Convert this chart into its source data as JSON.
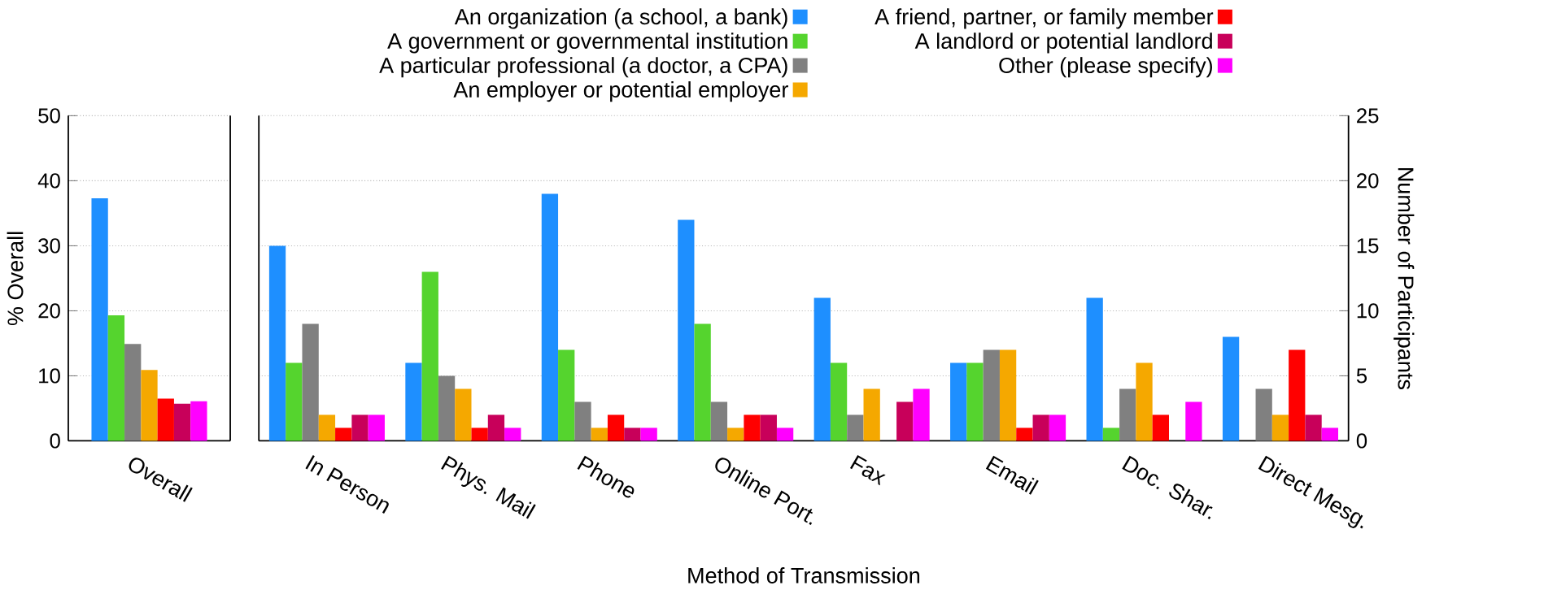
{
  "chart_data": [
    {
      "type": "bar",
      "ylabel": "% Overall",
      "categories": [
        "Overall"
      ],
      "ylim": [
        0,
        50
      ],
      "yticks": [
        0,
        10,
        20,
        30,
        40,
        50
      ],
      "grid": "y",
      "legend": false,
      "series": [
        {
          "color": "#1e8fff",
          "values": [
            37.3
          ]
        },
        {
          "color": "#55d42e",
          "values": [
            19.3
          ]
        },
        {
          "color": "#808080",
          "values": [
            14.9
          ]
        },
        {
          "color": "#f5a800",
          "values": [
            10.9
          ]
        },
        {
          "color": "#ff0000",
          "values": [
            6.5
          ]
        },
        {
          "color": "#c8005a",
          "values": [
            5.7
          ]
        },
        {
          "color": "#ff00ff",
          "values": [
            6.1
          ]
        }
      ]
    },
    {
      "type": "bar",
      "xlabel": "Method of Transmission",
      "y2label": "Number of Participants",
      "categories": [
        "In Person",
        "Phys. Mail",
        "Phone",
        "Online Port.",
        "Fax",
        "Email",
        "Doc. Shar.",
        "Direct Mesg."
      ],
      "y2lim": [
        0,
        25
      ],
      "y2ticks": [
        0,
        5,
        10,
        15,
        20,
        25
      ],
      "grid": "y",
      "legend": "top",
      "series": [
        {
          "name": "An organization (a school, a bank)",
          "color": "#1e8fff",
          "axis": "y2",
          "values": [
            15,
            6,
            19,
            17,
            11,
            6,
            11,
            8
          ]
        },
        {
          "name": "A government or governmental institution",
          "color": "#55d42e",
          "axis": "y2",
          "values": [
            6,
            13,
            7,
            9,
            6,
            6,
            1,
            0
          ]
        },
        {
          "name": "A particular professional (a doctor, a CPA)",
          "color": "#808080",
          "axis": "y2",
          "values": [
            9,
            5,
            3,
            3,
            2,
            7,
            4,
            4
          ]
        },
        {
          "name": "An employer or potential employer",
          "color": "#f5a800",
          "axis": "y2",
          "values": [
            2,
            4,
            1,
            1,
            4,
            7,
            6,
            2
          ]
        },
        {
          "name": "A friend, partner, or family member",
          "color": "#ff0000",
          "axis": "y2",
          "values": [
            1,
            1,
            2,
            2,
            0,
            1,
            2,
            7
          ]
        },
        {
          "name": "A landlord or potential landlord",
          "color": "#c8005a",
          "axis": "y2",
          "values": [
            2,
            2,
            1,
            2,
            3,
            2,
            0,
            2
          ]
        },
        {
          "name": "Other (please specify)",
          "color": "#ff00ff",
          "axis": "y2",
          "values": [
            2,
            1,
            1,
            1,
            4,
            2,
            3,
            1
          ]
        }
      ]
    }
  ]
}
